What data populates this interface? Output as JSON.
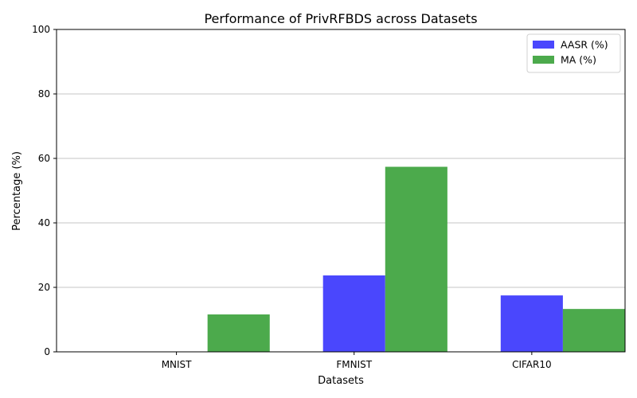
{
  "chart_data": {
    "type": "bar",
    "title": "Performance of PrivRFBDS across Datasets",
    "xlabel": "Datasets",
    "ylabel": "Percentage (%)",
    "categories": [
      "MNIST",
      "FMNIST",
      "CIFAR10"
    ],
    "ylim": [
      0,
      100
    ],
    "yticks": [
      0,
      20,
      40,
      60,
      80,
      100
    ],
    "grid": "y",
    "legend_position": "top-right",
    "series": [
      {
        "name": "AASR (%)",
        "values": [
          0,
          23.7,
          17.5
        ],
        "color": "#4a47fd"
      },
      {
        "name": "MA (%)",
        "values": [
          11.6,
          57.4,
          13.3
        ],
        "color": "#4caa4c"
      }
    ]
  }
}
